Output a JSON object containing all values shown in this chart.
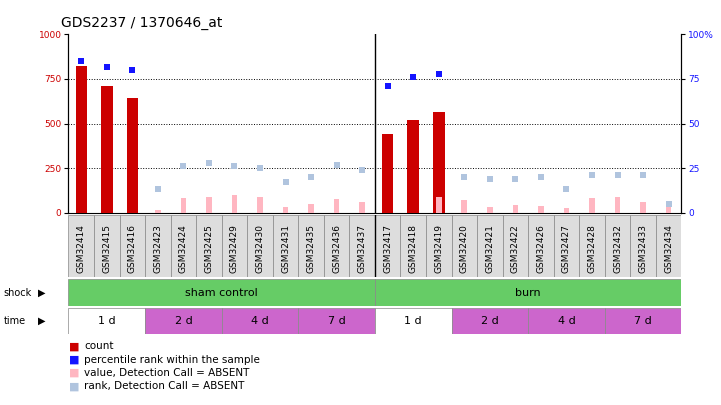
{
  "title": "GDS2237 / 1370646_at",
  "samples": [
    "GSM32414",
    "GSM32415",
    "GSM32416",
    "GSM32423",
    "GSM32424",
    "GSM32425",
    "GSM32429",
    "GSM32430",
    "GSM32431",
    "GSM32435",
    "GSM32436",
    "GSM32437",
    "GSM32417",
    "GSM32418",
    "GSM32419",
    "GSM32420",
    "GSM32421",
    "GSM32422",
    "GSM32426",
    "GSM32427",
    "GSM32428",
    "GSM32432",
    "GSM32433",
    "GSM32434"
  ],
  "count_values": [
    825,
    710,
    645,
    0,
    0,
    0,
    0,
    0,
    0,
    0,
    0,
    0,
    440,
    520,
    565,
    0,
    0,
    0,
    0,
    0,
    0,
    0,
    0,
    0
  ],
  "percentile_values": [
    85,
    82,
    80,
    0,
    0,
    0,
    0,
    0,
    0,
    0,
    0,
    0,
    71,
    76,
    78,
    0,
    0,
    0,
    0,
    0,
    0,
    0,
    0,
    0
  ],
  "absent_value_values": [
    0,
    0,
    0,
    15,
    80,
    85,
    100,
    90,
    30,
    50,
    75,
    60,
    0,
    0,
    90,
    70,
    30,
    40,
    35,
    25,
    80,
    85,
    60,
    30
  ],
  "absent_rank_values": [
    0,
    0,
    0,
    13,
    26,
    28,
    26,
    25,
    17,
    20,
    27,
    24,
    0,
    0,
    0,
    20,
    19,
    19,
    20,
    13,
    21,
    21,
    21,
    5
  ],
  "ylim_left": [
    0,
    1000
  ],
  "ylim_right": [
    0,
    100
  ],
  "yticks_left": [
    0,
    250,
    500,
    750,
    1000
  ],
  "yticks_right": [
    0,
    25,
    50,
    75,
    100
  ],
  "bar_color": "#CC0000",
  "percentile_color": "#1414FF",
  "absent_value_color": "#FFB6C1",
  "absent_rank_color": "#B0C4DE",
  "bg_color": "#ffffff",
  "grid_color": "#000000",
  "title_fontsize": 10,
  "tick_fontsize": 6.5,
  "legend_fontsize": 7.5,
  "shock_color": "#66CC66",
  "time_color_light": "#ffffff",
  "time_color_dark": "#CC66CC",
  "time_groups": [
    {
      "label": "1 d",
      "xstart": -0.5,
      "xend": 2.5,
      "light": true
    },
    {
      "label": "2 d",
      "xstart": 2.5,
      "xend": 5.5,
      "light": false
    },
    {
      "label": "4 d",
      "xstart": 5.5,
      "xend": 8.5,
      "light": false
    },
    {
      "label": "7 d",
      "xstart": 8.5,
      "xend": 11.5,
      "light": false
    },
    {
      "label": "1 d",
      "xstart": 11.5,
      "xend": 14.5,
      "light": true
    },
    {
      "label": "2 d",
      "xstart": 14.5,
      "xend": 17.5,
      "light": false
    },
    {
      "label": "4 d",
      "xstart": 17.5,
      "xend": 20.5,
      "light": false
    },
    {
      "label": "7 d",
      "xstart": 20.5,
      "xend": 23.5,
      "light": false
    }
  ]
}
